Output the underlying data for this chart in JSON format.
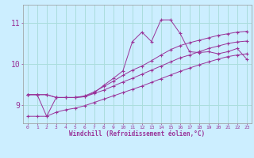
{
  "xlabel": "Windchill (Refroidissement éolien,°C)",
  "background_color": "#cceeff",
  "grid_color": "#aadddd",
  "line_color": "#993399",
  "x_ticks": [
    0,
    1,
    2,
    3,
    4,
    5,
    6,
    7,
    8,
    9,
    10,
    11,
    12,
    13,
    14,
    15,
    16,
    17,
    18,
    19,
    20,
    21,
    22,
    23
  ],
  "y_ticks": [
    9,
    10,
    11
  ],
  "xlim": [
    -0.5,
    23.5
  ],
  "ylim": [
    8.55,
    11.45
  ],
  "lines": [
    [
      9.25,
      9.25,
      8.72,
      9.18,
      9.18,
      9.18,
      9.2,
      9.3,
      9.48,
      9.65,
      9.83,
      10.55,
      10.78,
      10.55,
      11.08,
      11.08,
      10.75,
      10.3,
      10.28,
      10.3,
      10.25,
      10.3,
      10.38,
      10.12
    ],
    [
      9.25,
      9.25,
      9.25,
      9.18,
      9.18,
      9.18,
      9.22,
      9.32,
      9.45,
      9.58,
      9.72,
      9.85,
      9.95,
      10.08,
      10.22,
      10.35,
      10.45,
      10.52,
      10.58,
      10.64,
      10.7,
      10.74,
      10.78,
      10.8
    ],
    [
      9.25,
      9.25,
      9.25,
      9.18,
      9.18,
      9.18,
      9.2,
      9.28,
      9.36,
      9.46,
      9.56,
      9.65,
      9.75,
      9.85,
      9.95,
      10.05,
      10.15,
      10.22,
      10.3,
      10.38,
      10.44,
      10.5,
      10.54,
      10.56
    ],
    [
      8.72,
      8.72,
      8.72,
      8.82,
      8.88,
      8.92,
      8.98,
      9.06,
      9.14,
      9.22,
      9.3,
      9.38,
      9.46,
      9.55,
      9.64,
      9.73,
      9.82,
      9.9,
      9.98,
      10.05,
      10.12,
      10.18,
      10.22,
      10.25
    ]
  ]
}
